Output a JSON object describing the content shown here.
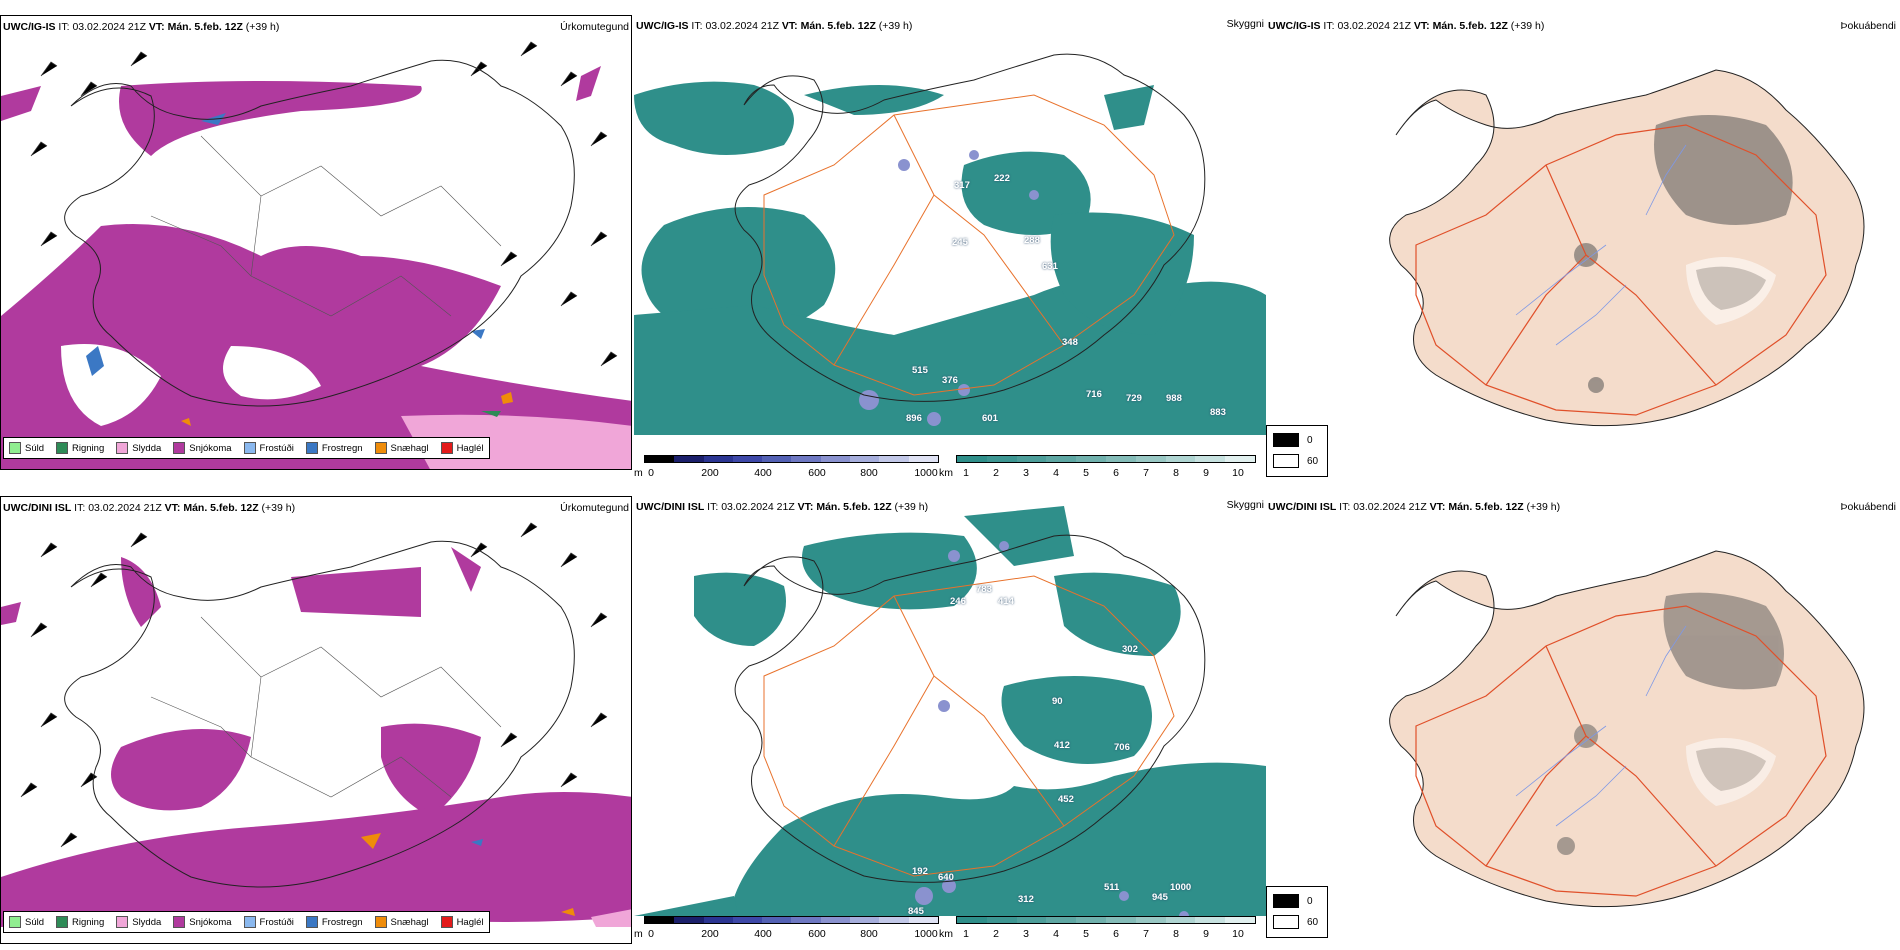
{
  "colors": {
    "snow": "#b03a9e",
    "sleet": "#f0a6d8",
    "rain": "#2e8b57",
    "drizzle": "#90ee90",
    "frost_drizzle": "#8ab8ee",
    "frost_rain": "#3b78c4",
    "snow_grains": "#ef8c0a",
    "hail": "#e31b1b",
    "visibility_teal": "#2f8f8a",
    "roads": "#e8722c",
    "land_fog": "#f4dccb",
    "rivers": "#7e98e6"
  },
  "header_label_it": "IT:",
  "header_label_vt": "VT:",
  "header_issue_time": "03.02.2024 21Z",
  "header_valid_time": "Mán. 5.feb. 12Z",
  "header_lead": "(+39 h)",
  "rows": [
    {
      "model": "UWC/IG-IS"
    },
    {
      "model": "UWC/DINI ISL"
    }
  ],
  "panel_titles": {
    "precip_type": "Úrkomutegund",
    "visibility": "Skyggni",
    "fog": "Þokuábendi"
  },
  "precip_legend": [
    {
      "label": "Súld",
      "color": "#90ee90"
    },
    {
      "label": "Rigning",
      "color": "#2e8b57"
    },
    {
      "label": "Slydda",
      "color": "#f0a6d8"
    },
    {
      "label": "Snjókoma",
      "color": "#b03a9e"
    },
    {
      "label": "Frostúði",
      "color": "#8ab8ee"
    },
    {
      "label": "Frostregn",
      "color": "#3b78c4"
    },
    {
      "label": "Snæhagl",
      "color": "#ef8c0a"
    },
    {
      "label": "Haglél",
      "color": "#e31b1b"
    }
  ],
  "visibility_colorbar": {
    "m_unit": "m",
    "m_ticks": [
      "0",
      "200",
      "400",
      "600",
      "800",
      "1000"
    ],
    "m_colors": [
      "#000000",
      "#1b1f6b",
      "#2b3592",
      "#3e48a8",
      "#5361b4",
      "#6e78c2",
      "#8a92cf",
      "#a6aedc",
      "#c2c8e8",
      "#dfe2f4"
    ],
    "km_unit": "km",
    "km_ticks": [
      "1",
      "2",
      "3",
      "4",
      "5",
      "6",
      "7",
      "8",
      "9",
      "10"
    ],
    "km_colors": [
      "#2f8f8a",
      "#3d9692",
      "#4d9e9a",
      "#5ea7a3",
      "#70b1ad",
      "#84bcb8",
      "#99c8c4",
      "#afd5d2",
      "#c7e2e0",
      "#e1f0ef"
    ]
  },
  "fog_legend": [
    {
      "value": "0",
      "color": "#000000"
    },
    {
      "value": "60",
      "color": "#ffffff"
    }
  ],
  "visibility_labels_top": [
    "222",
    "317",
    "245",
    "288",
    "631",
    "348",
    "515",
    "376",
    "716",
    "729",
    "988",
    "883",
    "601",
    "896"
  ],
  "visibility_labels_bottom": [
    "783",
    "246",
    "414",
    "302",
    "90",
    "412",
    "706",
    "452",
    "192",
    "640",
    "312",
    "511",
    "1000",
    "945",
    "845"
  ]
}
